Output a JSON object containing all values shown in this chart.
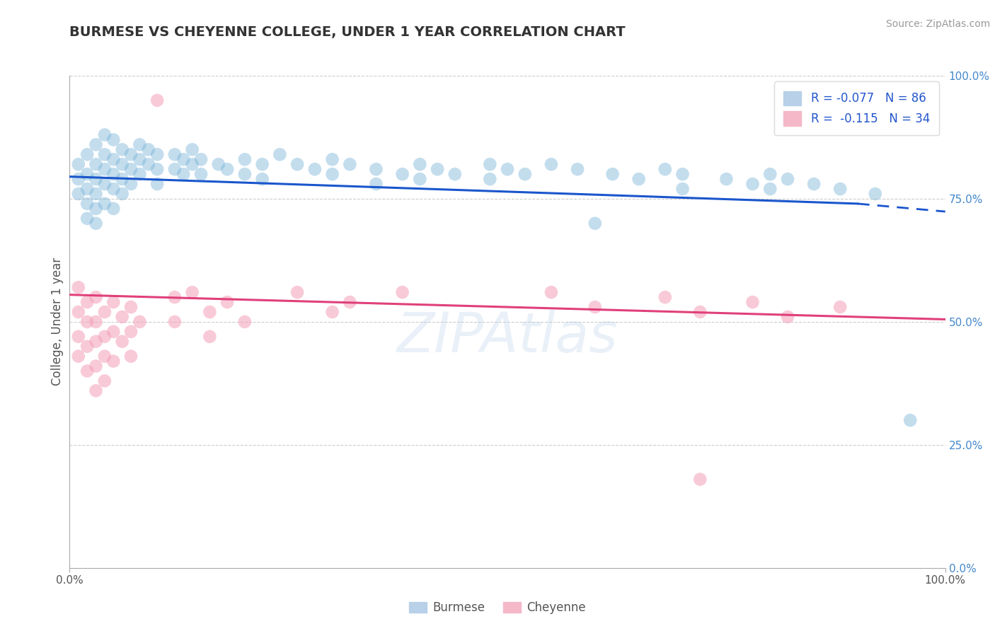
{
  "title": "BURMESE VS CHEYENNE COLLEGE, UNDER 1 YEAR CORRELATION CHART",
  "title_fontsize": 14,
  "title_color": "#333333",
  "source_text": "Source: ZipAtlas.com",
  "ylabel": "College, Under 1 year",
  "xlim": [
    0.0,
    1.0
  ],
  "ylim": [
    0.0,
    1.0
  ],
  "ytick_positions": [
    0.0,
    0.25,
    0.5,
    0.75,
    1.0
  ],
  "ytick_labels_right": [
    "0.0%",
    "25.0%",
    "50.0%",
    "75.0%",
    "100.0%"
  ],
  "watermark": "ZIPAtlas",
  "burmese_color": "#7ab4d8",
  "cheyenne_color": "#f4a0b8",
  "bg_color": "#ffffff",
  "grid_color": "#cccccc",
  "blue_line_color": "#1a56cc",
  "pink_line_color": "#e0407a",
  "burmese_points": [
    [
      0.01,
      0.79
    ],
    [
      0.01,
      0.76
    ],
    [
      0.01,
      0.82
    ],
    [
      0.02,
      0.84
    ],
    [
      0.02,
      0.8
    ],
    [
      0.02,
      0.77
    ],
    [
      0.02,
      0.74
    ],
    [
      0.02,
      0.71
    ],
    [
      0.03,
      0.86
    ],
    [
      0.03,
      0.82
    ],
    [
      0.03,
      0.79
    ],
    [
      0.03,
      0.76
    ],
    [
      0.03,
      0.73
    ],
    [
      0.03,
      0.7
    ],
    [
      0.04,
      0.88
    ],
    [
      0.04,
      0.84
    ],
    [
      0.04,
      0.81
    ],
    [
      0.04,
      0.78
    ],
    [
      0.04,
      0.74
    ],
    [
      0.05,
      0.87
    ],
    [
      0.05,
      0.83
    ],
    [
      0.05,
      0.8
    ],
    [
      0.05,
      0.77
    ],
    [
      0.05,
      0.73
    ],
    [
      0.06,
      0.85
    ],
    [
      0.06,
      0.82
    ],
    [
      0.06,
      0.79
    ],
    [
      0.06,
      0.76
    ],
    [
      0.07,
      0.84
    ],
    [
      0.07,
      0.81
    ],
    [
      0.07,
      0.78
    ],
    [
      0.08,
      0.86
    ],
    [
      0.08,
      0.83
    ],
    [
      0.08,
      0.8
    ],
    [
      0.09,
      0.85
    ],
    [
      0.09,
      0.82
    ],
    [
      0.1,
      0.84
    ],
    [
      0.1,
      0.81
    ],
    [
      0.1,
      0.78
    ],
    [
      0.12,
      0.84
    ],
    [
      0.12,
      0.81
    ],
    [
      0.13,
      0.83
    ],
    [
      0.13,
      0.8
    ],
    [
      0.14,
      0.85
    ],
    [
      0.14,
      0.82
    ],
    [
      0.15,
      0.83
    ],
    [
      0.15,
      0.8
    ],
    [
      0.17,
      0.82
    ],
    [
      0.18,
      0.81
    ],
    [
      0.2,
      0.83
    ],
    [
      0.2,
      0.8
    ],
    [
      0.22,
      0.82
    ],
    [
      0.22,
      0.79
    ],
    [
      0.24,
      0.84
    ],
    [
      0.26,
      0.82
    ],
    [
      0.28,
      0.81
    ],
    [
      0.3,
      0.83
    ],
    [
      0.3,
      0.8
    ],
    [
      0.32,
      0.82
    ],
    [
      0.35,
      0.81
    ],
    [
      0.35,
      0.78
    ],
    [
      0.38,
      0.8
    ],
    [
      0.4,
      0.82
    ],
    [
      0.4,
      0.79
    ],
    [
      0.42,
      0.81
    ],
    [
      0.44,
      0.8
    ],
    [
      0.48,
      0.82
    ],
    [
      0.48,
      0.79
    ],
    [
      0.5,
      0.81
    ],
    [
      0.52,
      0.8
    ],
    [
      0.55,
      0.82
    ],
    [
      0.58,
      0.81
    ],
    [
      0.6,
      0.7
    ],
    [
      0.62,
      0.8
    ],
    [
      0.65,
      0.79
    ],
    [
      0.68,
      0.81
    ],
    [
      0.7,
      0.8
    ],
    [
      0.7,
      0.77
    ],
    [
      0.75,
      0.79
    ],
    [
      0.78,
      0.78
    ],
    [
      0.8,
      0.8
    ],
    [
      0.8,
      0.77
    ],
    [
      0.82,
      0.79
    ],
    [
      0.85,
      0.78
    ],
    [
      0.88,
      0.77
    ],
    [
      0.92,
      0.76
    ],
    [
      0.96,
      0.3
    ]
  ],
  "cheyenne_points": [
    [
      0.01,
      0.57
    ],
    [
      0.01,
      0.52
    ],
    [
      0.01,
      0.47
    ],
    [
      0.01,
      0.43
    ],
    [
      0.02,
      0.54
    ],
    [
      0.02,
      0.5
    ],
    [
      0.02,
      0.45
    ],
    [
      0.02,
      0.4
    ],
    [
      0.03,
      0.55
    ],
    [
      0.03,
      0.5
    ],
    [
      0.03,
      0.46
    ],
    [
      0.03,
      0.41
    ],
    [
      0.03,
      0.36
    ],
    [
      0.04,
      0.52
    ],
    [
      0.04,
      0.47
    ],
    [
      0.04,
      0.43
    ],
    [
      0.04,
      0.38
    ],
    [
      0.05,
      0.54
    ],
    [
      0.05,
      0.48
    ],
    [
      0.05,
      0.42
    ],
    [
      0.06,
      0.51
    ],
    [
      0.06,
      0.46
    ],
    [
      0.07,
      0.53
    ],
    [
      0.07,
      0.48
    ],
    [
      0.07,
      0.43
    ],
    [
      0.08,
      0.5
    ],
    [
      0.1,
      0.95
    ],
    [
      0.12,
      0.55
    ],
    [
      0.12,
      0.5
    ],
    [
      0.14,
      0.56
    ],
    [
      0.16,
      0.52
    ],
    [
      0.16,
      0.47
    ],
    [
      0.18,
      0.54
    ],
    [
      0.2,
      0.5
    ],
    [
      0.26,
      0.56
    ],
    [
      0.3,
      0.52
    ],
    [
      0.32,
      0.54
    ],
    [
      0.38,
      0.56
    ],
    [
      0.55,
      0.56
    ],
    [
      0.6,
      0.53
    ],
    [
      0.68,
      0.55
    ],
    [
      0.72,
      0.52
    ],
    [
      0.78,
      0.54
    ],
    [
      0.82,
      0.51
    ],
    [
      0.88,
      0.53
    ],
    [
      0.72,
      0.18
    ]
  ]
}
